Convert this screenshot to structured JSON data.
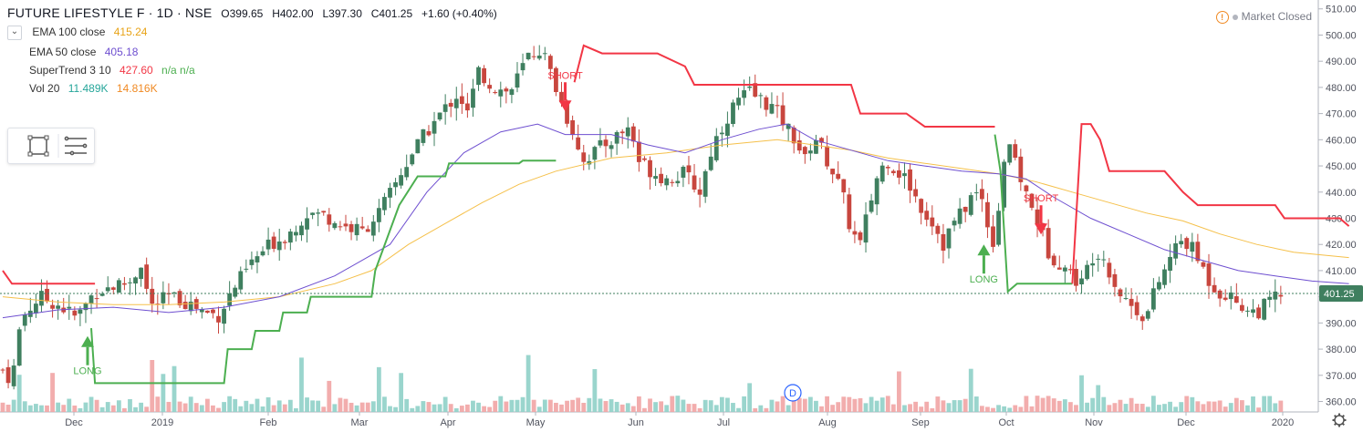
{
  "header": {
    "symbol": "FUTURE LIFESTYLE F · 1D · NSE",
    "open": "O399.65",
    "high": "H402.00",
    "low": "L397.30",
    "close": "C401.25",
    "change": "+1.60 (+0.40%)",
    "market_status": "Market Closed"
  },
  "legend": [
    {
      "name": "EMA 100 close",
      "value": "415.24",
      "value2": "",
      "color": "#e8a317"
    },
    {
      "name": "EMA 50 close",
      "value": "405.18",
      "value2": "",
      "color": "#6e4fd0"
    },
    {
      "name": "SuperTrend 3 10",
      "value": "427.60",
      "value2": "n/a  n/a",
      "color": "#f23645"
    },
    {
      "name": "Vol 20",
      "value": "11.489K",
      "value2": "14.816K",
      "color": "#26a69a"
    }
  ],
  "icons": [
    "chevron-icon",
    "rectangle-tool-icon",
    "menu-lines-icon",
    "settings-gear-icon",
    "dividend-icon"
  ],
  "colors": {
    "up": "#3f7f5f",
    "down": "#c8463e",
    "supertrend_up": "#4caf50",
    "supertrend_down": "#f23645",
    "ema100": "#f5c04a",
    "ema50": "#6e4fd0",
    "vol_up": "#8fd0c8",
    "vol_down": "#f1a4a4",
    "price_badge": "#3f7f5f"
  },
  "chart_data": {
    "type": "candlestick",
    "title": "FUTURE LIFESTYLE F · 1D · NSE",
    "y_ticks": [
      "510.00",
      "500.00",
      "490.00",
      "480.00",
      "470.00",
      "460.00",
      "450.00",
      "440.00",
      "430.00",
      "420.00",
      "410.00",
      "400.00",
      "390.00",
      "380.00",
      "370.00",
      "360.00"
    ],
    "ylim": [
      356,
      512
    ],
    "x_ticks": [
      "Dec",
      "2019",
      "Feb",
      "Mar",
      "Apr",
      "May",
      "Jun",
      "Jul",
      "Aug",
      "Sep",
      "Oct",
      "Nov",
      "Dec",
      "2020"
    ],
    "last_price": "401.25",
    "price_anchors": [
      [
        0,
        372
      ],
      [
        5,
        368
      ],
      [
        10,
        392
      ],
      [
        20,
        400
      ],
      [
        30,
        397
      ],
      [
        40,
        392
      ],
      [
        50,
        402
      ],
      [
        60,
        404
      ],
      [
        70,
        406
      ],
      [
        75,
        413
      ],
      [
        80,
        396
      ],
      [
        90,
        400
      ],
      [
        100,
        398
      ],
      [
        110,
        394
      ],
      [
        117,
        393
      ],
      [
        125,
        403
      ],
      [
        135,
        413
      ],
      [
        145,
        420
      ],
      [
        155,
        424
      ],
      [
        165,
        432
      ],
      [
        175,
        431
      ],
      [
        185,
        427
      ],
      [
        195,
        425
      ],
      [
        205,
        433
      ],
      [
        212,
        442
      ],
      [
        222,
        455
      ],
      [
        232,
        465
      ],
      [
        240,
        472
      ],
      [
        247,
        478
      ],
      [
        252,
        470
      ],
      [
        258,
        486
      ],
      [
        266,
        480
      ],
      [
        275,
        478
      ],
      [
        285,
        492
      ],
      [
        292,
        495
      ],
      [
        300,
        480
      ],
      [
        305,
        470
      ],
      [
        310,
        462
      ],
      [
        315,
        452
      ],
      [
        320,
        455
      ],
      [
        330,
        460
      ],
      [
        340,
        465
      ],
      [
        345,
        452
      ],
      [
        352,
        448
      ],
      [
        360,
        445
      ],
      [
        370,
        447
      ],
      [
        378,
        440
      ],
      [
        385,
        458
      ],
      [
        390,
        465
      ],
      [
        398,
        475
      ],
      [
        405,
        478
      ],
      [
        412,
        475
      ],
      [
        418,
        472
      ],
      [
        422,
        468
      ],
      [
        430,
        460
      ],
      [
        435,
        452
      ],
      [
        440,
        462
      ],
      [
        445,
        455
      ],
      [
        450,
        448
      ],
      [
        455,
        440
      ],
      [
        460,
        425
      ],
      [
        465,
        420
      ],
      [
        470,
        435
      ],
      [
        475,
        448
      ],
      [
        480,
        452
      ],
      [
        485,
        448
      ],
      [
        490,
        445
      ],
      [
        495,
        438
      ],
      [
        500,
        432
      ],
      [
        505,
        428
      ],
      [
        510,
        420
      ],
      [
        515,
        428
      ],
      [
        520,
        432
      ],
      [
        525,
        438
      ],
      [
        530,
        440
      ],
      [
        535,
        425
      ],
      [
        538,
        420
      ],
      [
        542,
        448
      ],
      [
        545,
        462
      ],
      [
        548,
        452
      ],
      [
        552,
        445
      ],
      [
        557,
        435
      ],
      [
        562,
        428
      ],
      [
        566,
        418
      ],
      [
        570,
        415
      ],
      [
        575,
        412
      ],
      [
        580,
        408
      ],
      [
        585,
        405
      ],
      [
        590,
        415
      ],
      [
        595,
        418
      ],
      [
        600,
        410
      ],
      [
        605,
        402
      ],
      [
        610,
        398
      ],
      [
        615,
        395
      ],
      [
        620,
        392
      ],
      [
        625,
        403
      ],
      [
        630,
        410
      ],
      [
        635,
        418
      ],
      [
        640,
        422
      ],
      [
        645,
        418
      ],
      [
        650,
        412
      ],
      [
        655,
        405
      ],
      [
        660,
        402
      ],
      [
        665,
        400
      ],
      [
        670,
        398
      ],
      [
        675,
        395
      ],
      [
        680,
        394
      ],
      [
        685,
        397
      ],
      [
        690,
        400
      ],
      [
        695,
        401
      ]
    ],
    "supertrend_down_1": [
      [
        0,
        410
      ],
      [
        5,
        405
      ],
      [
        50,
        405
      ]
    ],
    "supertrend_up_1": [
      [
        48,
        388
      ],
      [
        50,
        367
      ],
      [
        120,
        367
      ],
      [
        122,
        380
      ],
      [
        135,
        380
      ],
      [
        137,
        387
      ],
      [
        150,
        387
      ],
      [
        152,
        394
      ],
      [
        165,
        394
      ],
      [
        167,
        400
      ],
      [
        200,
        400
      ],
      [
        202,
        410
      ],
      [
        215,
        435
      ],
      [
        225,
        446
      ],
      [
        240,
        446
      ],
      [
        242,
        451
      ],
      [
        280,
        451
      ],
      [
        282,
        452
      ],
      [
        300,
        452
      ]
    ],
    "supertrend_down_2": [
      [
        310,
        482
      ],
      [
        315,
        496
      ],
      [
        325,
        493
      ],
      [
        355,
        493
      ],
      [
        370,
        488
      ],
      [
        375,
        481
      ],
      [
        460,
        481
      ],
      [
        465,
        470
      ],
      [
        490,
        470
      ],
      [
        500,
        465
      ],
      [
        538,
        465
      ]
    ],
    "supertrend_up_2": [
      [
        538,
        462
      ],
      [
        541,
        448
      ],
      [
        545,
        402
      ],
      [
        550,
        405
      ],
      [
        580,
        405
      ]
    ],
    "supertrend_down_3": [
      [
        580,
        405
      ],
      [
        585,
        466
      ],
      [
        590,
        466
      ],
      [
        595,
        460
      ],
      [
        600,
        448
      ],
      [
        605,
        448
      ],
      [
        630,
        448
      ],
      [
        640,
        440
      ],
      [
        648,
        435
      ],
      [
        690,
        435
      ],
      [
        695,
        430
      ],
      [
        725,
        430
      ],
      [
        730,
        427
      ]
    ],
    "ema100": [
      [
        0,
        400
      ],
      [
        30,
        398
      ],
      [
        60,
        397
      ],
      [
        90,
        397
      ],
      [
        120,
        398
      ],
      [
        150,
        400
      ],
      [
        180,
        405
      ],
      [
        200,
        410
      ],
      [
        220,
        420
      ],
      [
        240,
        428
      ],
      [
        260,
        436
      ],
      [
        280,
        443
      ],
      [
        300,
        448
      ],
      [
        330,
        453
      ],
      [
        360,
        455
      ],
      [
        390,
        458
      ],
      [
        420,
        460
      ],
      [
        440,
        458
      ],
      [
        460,
        456
      ],
      [
        480,
        453
      ],
      [
        500,
        451
      ],
      [
        520,
        449
      ],
      [
        540,
        447
      ],
      [
        560,
        444
      ],
      [
        580,
        440
      ],
      [
        600,
        436
      ],
      [
        620,
        432
      ],
      [
        640,
        429
      ],
      [
        660,
        424
      ],
      [
        680,
        420
      ],
      [
        700,
        417
      ],
      [
        730,
        415
      ]
    ],
    "ema50": [
      [
        0,
        392
      ],
      [
        30,
        395
      ],
      [
        60,
        396
      ],
      [
        90,
        394
      ],
      [
        120,
        396
      ],
      [
        150,
        400
      ],
      [
        180,
        408
      ],
      [
        210,
        420
      ],
      [
        230,
        440
      ],
      [
        250,
        455
      ],
      [
        270,
        463
      ],
      [
        290,
        466
      ],
      [
        305,
        462
      ],
      [
        330,
        462
      ],
      [
        350,
        458
      ],
      [
        370,
        455
      ],
      [
        390,
        460
      ],
      [
        410,
        464
      ],
      [
        425,
        466
      ],
      [
        440,
        460
      ],
      [
        460,
        456
      ],
      [
        480,
        452
      ],
      [
        500,
        450
      ],
      [
        520,
        448
      ],
      [
        540,
        447
      ],
      [
        555,
        445
      ],
      [
        570,
        438
      ],
      [
        590,
        430
      ],
      [
        610,
        424
      ],
      [
        630,
        418
      ],
      [
        650,
        414
      ],
      [
        670,
        410
      ],
      [
        690,
        408
      ],
      [
        710,
        406
      ],
      [
        730,
        405
      ]
    ],
    "signals": [
      {
        "label": "LONG",
        "color": "#4caf50",
        "dir": "up",
        "bar": 46,
        "price": 385
      },
      {
        "label": "SHORT",
        "color": "#f23645",
        "dir": "down",
        "bar": 305,
        "price": 475
      },
      {
        "label": "LONG",
        "color": "#4caf50",
        "dir": "up",
        "bar": 532,
        "price": 420
      },
      {
        "label": "SHORT",
        "color": "#f23645",
        "dir": "down",
        "bar": 563,
        "price": 428
      }
    ],
    "signal_labels": [
      "LONG",
      "SHORT",
      "LONG",
      "SHORT"
    ],
    "dividend_marker": "D"
  }
}
